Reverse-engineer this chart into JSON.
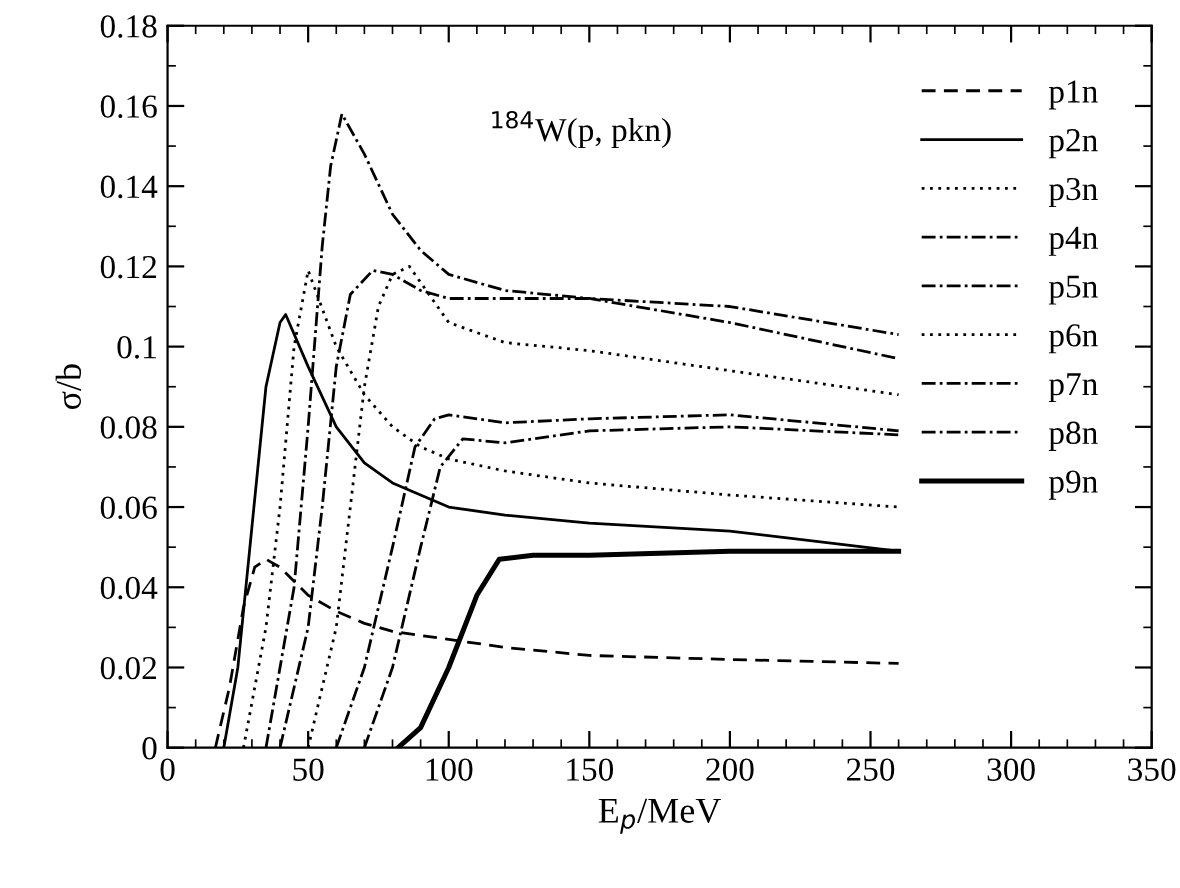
{
  "chart_data": {
    "type": "line",
    "xlabel": "E$_{p}$/MeV",
    "ylabel": "σ/b",
    "annotations": [
      "$^{184}$W(p, pkn)"
    ],
    "xlim": [
      0,
      350
    ],
    "xticks": [
      0,
      50,
      100,
      150,
      200,
      250,
      300,
      350
    ],
    "ylim": [
      0,
      0.18
    ],
    "yticks": [
      0,
      0.02,
      0.04,
      0.06,
      0.08,
      0.1,
      0.12,
      0.14,
      0.16,
      0.18
    ],
    "grid": false,
    "legend": "top right",
    "marker": "none",
    "series": [
      {
        "name": "p1n",
        "color": "#000000",
        "line_style": "dashed",
        "x": [
          17,
          22,
          27,
          31,
          35,
          40,
          50,
          60,
          70,
          80,
          100,
          120,
          150,
          200,
          260
        ],
        "values": [
          0,
          0.015,
          0.035,
          0.045,
          0.047,
          0.045,
          0.038,
          0.034,
          0.031,
          0.029,
          0.027,
          0.025,
          0.023,
          0.022,
          0.021
        ]
      },
      {
        "name": "p2n",
        "color": "#000000",
        "line_style": "solid",
        "x": [
          20,
          25,
          30,
          35,
          40,
          42,
          50,
          60,
          70,
          80,
          90,
          100,
          120,
          150,
          200,
          260
        ],
        "values": [
          0,
          0.02,
          0.055,
          0.09,
          0.106,
          0.108,
          0.095,
          0.08,
          0.071,
          0.066,
          0.063,
          0.06,
          0.058,
          0.056,
          0.054,
          0.049
        ]
      },
      {
        "name": "p3n",
        "color": "#000000",
        "line_style": "dotted",
        "x": [
          27,
          35,
          40,
          45,
          50,
          60,
          70,
          80,
          90,
          100,
          120,
          150,
          200,
          260
        ],
        "values": [
          0,
          0.03,
          0.06,
          0.1,
          0.119,
          0.1,
          0.088,
          0.08,
          0.075,
          0.072,
          0.069,
          0.066,
          0.063,
          0.06
        ]
      },
      {
        "name": "p4n",
        "color": "#000000",
        "line_style": "dashdot",
        "x": [
          35,
          45,
          50,
          55,
          58,
          62,
          70,
          80,
          90,
          100,
          120,
          150,
          200,
          260
        ],
        "values": [
          0,
          0.04,
          0.08,
          0.125,
          0.145,
          0.158,
          0.148,
          0.133,
          0.124,
          0.118,
          0.114,
          0.112,
          0.106,
          0.097
        ]
      },
      {
        "name": "p5n",
        "color": "#000000",
        "line_style": "dashdot",
        "x": [
          40,
          50,
          55,
          60,
          65,
          73,
          80,
          90,
          100,
          150,
          200,
          260
        ],
        "values": [
          0,
          0.03,
          0.06,
          0.095,
          0.113,
          0.119,
          0.118,
          0.114,
          0.112,
          0.112,
          0.11,
          0.103
        ]
      },
      {
        "name": "p6n",
        "color": "#000000",
        "line_style": "dotted",
        "x": [
          50,
          60,
          65,
          70,
          75,
          80,
          86,
          100,
          120,
          150,
          200,
          260
        ],
        "values": [
          0,
          0.03,
          0.06,
          0.09,
          0.11,
          0.118,
          0.12,
          0.106,
          0.101,
          0.099,
          0.094,
          0.088
        ]
      },
      {
        "name": "p7n",
        "color": "#000000",
        "line_style": "dashdot",
        "x": [
          60,
          70,
          80,
          88,
          95,
          100,
          120,
          150,
          200,
          260
        ],
        "values": [
          0,
          0.02,
          0.05,
          0.075,
          0.082,
          0.083,
          0.081,
          0.082,
          0.083,
          0.079
        ]
      },
      {
        "name": "p8n",
        "color": "#000000",
        "line_style": "dashdot",
        "x": [
          70,
          80,
          90,
          97,
          105,
          120,
          150,
          200,
          260
        ],
        "values": [
          0,
          0.02,
          0.05,
          0.07,
          0.077,
          0.076,
          0.079,
          0.08,
          0.078
        ]
      },
      {
        "name": "p9n",
        "color": "#000000",
        "line_style": "solid",
        "x": [
          82,
          90,
          100,
          110,
          118,
          130,
          150,
          200,
          260
        ],
        "values": [
          0,
          0.005,
          0.02,
          0.038,
          0.047,
          0.048,
          0.048,
          0.049,
          0.049
        ]
      }
    ]
  }
}
